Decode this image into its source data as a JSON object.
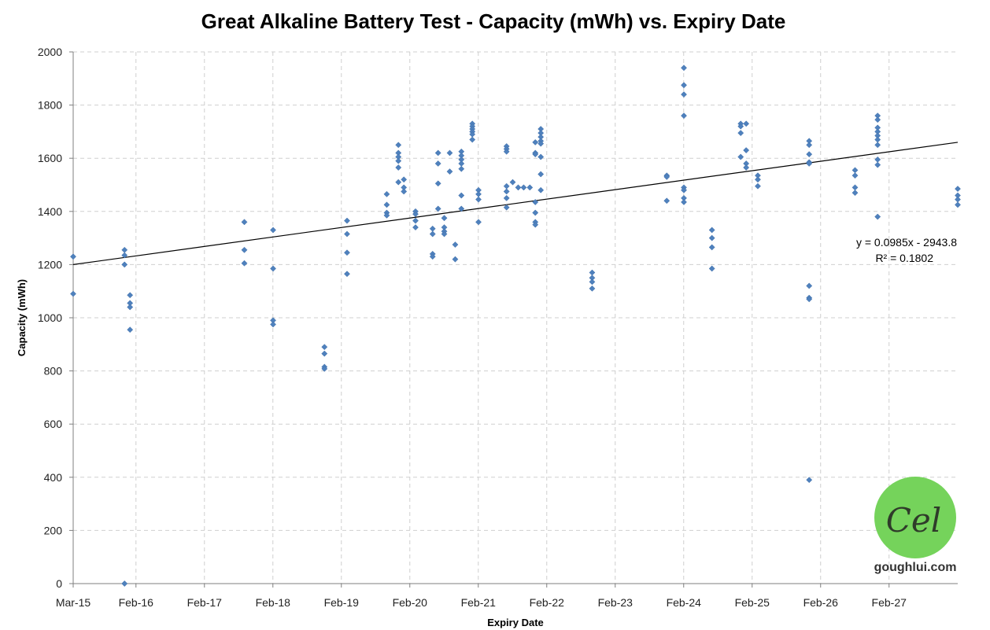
{
  "chart_data": {
    "type": "scatter",
    "title": "Great Alkaline Battery Test - Capacity (mWh) vs. Expiry Date",
    "xlabel": "Expiry Date",
    "ylabel": "Capacity (mWh)",
    "x_unit": "years since Mar-15",
    "xlim": [
      0,
      12.92
    ],
    "ylim": [
      0,
      2000
    ],
    "ytick_step": 200,
    "grid": true,
    "x_tick_labels": [
      {
        "x": 0.0,
        "label": "Mar-15"
      },
      {
        "x": 0.917,
        "label": "Feb-16"
      },
      {
        "x": 1.917,
        "label": "Feb-17"
      },
      {
        "x": 2.917,
        "label": "Feb-18"
      },
      {
        "x": 3.917,
        "label": "Feb-19"
      },
      {
        "x": 4.917,
        "label": "Feb-20"
      },
      {
        "x": 5.917,
        "label": "Feb-21"
      },
      {
        "x": 6.917,
        "label": "Feb-22"
      },
      {
        "x": 7.917,
        "label": "Feb-23"
      },
      {
        "x": 8.917,
        "label": "Feb-24"
      },
      {
        "x": 9.917,
        "label": "Feb-25"
      },
      {
        "x": 10.917,
        "label": "Feb-26"
      },
      {
        "x": 11.917,
        "label": "Feb-27"
      }
    ],
    "points": [
      [
        0.0,
        1230
      ],
      [
        0.0,
        1090
      ],
      [
        0.75,
        1255
      ],
      [
        0.75,
        1235
      ],
      [
        0.75,
        1200
      ],
      [
        0.75,
        0
      ],
      [
        0.83,
        1085
      ],
      [
        0.83,
        1055
      ],
      [
        0.83,
        1040
      ],
      [
        0.83,
        955
      ],
      [
        2.5,
        1360
      ],
      [
        2.5,
        1255
      ],
      [
        2.5,
        1205
      ],
      [
        2.92,
        1330
      ],
      [
        2.92,
        1185
      ],
      [
        2.92,
        990
      ],
      [
        2.92,
        975
      ],
      [
        3.67,
        890
      ],
      [
        3.67,
        865
      ],
      [
        3.67,
        815
      ],
      [
        3.67,
        808
      ],
      [
        4.0,
        1365
      ],
      [
        4.0,
        1315
      ],
      [
        4.0,
        1245
      ],
      [
        4.0,
        1165
      ],
      [
        4.58,
        1465
      ],
      [
        4.58,
        1425
      ],
      [
        4.58,
        1395
      ],
      [
        4.58,
        1385
      ],
      [
        4.75,
        1650
      ],
      [
        4.75,
        1620
      ],
      [
        4.75,
        1605
      ],
      [
        4.75,
        1590
      ],
      [
        4.75,
        1565
      ],
      [
        4.75,
        1510
      ],
      [
        4.83,
        1520
      ],
      [
        4.83,
        1490
      ],
      [
        4.83,
        1475
      ],
      [
        5.0,
        1400
      ],
      [
        5.0,
        1390
      ],
      [
        5.0,
        1365
      ],
      [
        5.0,
        1340
      ],
      [
        5.25,
        1335
      ],
      [
        5.25,
        1315
      ],
      [
        5.25,
        1240
      ],
      [
        5.25,
        1230
      ],
      [
        5.33,
        1620
      ],
      [
        5.33,
        1580
      ],
      [
        5.33,
        1505
      ],
      [
        5.33,
        1410
      ],
      [
        5.42,
        1375
      ],
      [
        5.42,
        1340
      ],
      [
        5.42,
        1325
      ],
      [
        5.42,
        1315
      ],
      [
        5.5,
        1620
      ],
      [
        5.5,
        1550
      ],
      [
        5.58,
        1275
      ],
      [
        5.58,
        1220
      ],
      [
        5.67,
        1625
      ],
      [
        5.67,
        1610
      ],
      [
        5.67,
        1595
      ],
      [
        5.67,
        1580
      ],
      [
        5.67,
        1560
      ],
      [
        5.67,
        1460
      ],
      [
        5.67,
        1410
      ],
      [
        5.83,
        1730
      ],
      [
        5.83,
        1720
      ],
      [
        5.83,
        1710
      ],
      [
        5.83,
        1700
      ],
      [
        5.83,
        1690
      ],
      [
        5.83,
        1670
      ],
      [
        5.92,
        1480
      ],
      [
        5.92,
        1465
      ],
      [
        5.92,
        1445
      ],
      [
        5.92,
        1360
      ],
      [
        6.33,
        1645
      ],
      [
        6.33,
        1635
      ],
      [
        6.33,
        1625
      ],
      [
        6.33,
        1495
      ],
      [
        6.33,
        1475
      ],
      [
        6.33,
        1450
      ],
      [
        6.33,
        1415
      ],
      [
        6.42,
        1510
      ],
      [
        6.5,
        1490
      ],
      [
        6.58,
        1490
      ],
      [
        6.67,
        1490
      ],
      [
        6.75,
        1660
      ],
      [
        6.75,
        1620
      ],
      [
        6.75,
        1615
      ],
      [
        6.75,
        1435
      ],
      [
        6.75,
        1395
      ],
      [
        6.75,
        1360
      ],
      [
        6.75,
        1350
      ],
      [
        6.83,
        1710
      ],
      [
        6.83,
        1695
      ],
      [
        6.83,
        1680
      ],
      [
        6.83,
        1665
      ],
      [
        6.83,
        1655
      ],
      [
        6.83,
        1605
      ],
      [
        6.83,
        1540
      ],
      [
        6.83,
        1480
      ],
      [
        7.58,
        1170
      ],
      [
        7.58,
        1150
      ],
      [
        7.58,
        1135
      ],
      [
        7.58,
        1110
      ],
      [
        8.67,
        1535
      ],
      [
        8.67,
        1530
      ],
      [
        8.67,
        1440
      ],
      [
        8.92,
        1940
      ],
      [
        8.92,
        1875
      ],
      [
        8.92,
        1840
      ],
      [
        8.92,
        1760
      ],
      [
        8.92,
        1490
      ],
      [
        8.92,
        1480
      ],
      [
        8.92,
        1450
      ],
      [
        8.92,
        1435
      ],
      [
        9.33,
        1330
      ],
      [
        9.33,
        1300
      ],
      [
        9.33,
        1265
      ],
      [
        9.33,
        1185
      ],
      [
        9.75,
        1730
      ],
      [
        9.75,
        1720
      ],
      [
        9.75,
        1695
      ],
      [
        9.75,
        1605
      ],
      [
        9.83,
        1730
      ],
      [
        9.83,
        1630
      ],
      [
        9.83,
        1580
      ],
      [
        9.83,
        1565
      ],
      [
        10.0,
        1535
      ],
      [
        10.0,
        1520
      ],
      [
        10.0,
        1495
      ],
      [
        10.75,
        1665
      ],
      [
        10.75,
        1650
      ],
      [
        10.75,
        1615
      ],
      [
        10.75,
        1585
      ],
      [
        10.75,
        1580
      ],
      [
        10.75,
        1120
      ],
      [
        10.75,
        1075
      ],
      [
        10.75,
        1070
      ],
      [
        10.75,
        390
      ],
      [
        11.42,
        1555
      ],
      [
        11.42,
        1535
      ],
      [
        11.42,
        1490
      ],
      [
        11.42,
        1470
      ],
      [
        11.75,
        1760
      ],
      [
        11.75,
        1745
      ],
      [
        11.75,
        1715
      ],
      [
        11.75,
        1700
      ],
      [
        11.75,
        1685
      ],
      [
        11.75,
        1670
      ],
      [
        11.75,
        1650
      ],
      [
        11.75,
        1595
      ],
      [
        11.75,
        1575
      ],
      [
        11.75,
        1380
      ],
      [
        12.92,
        1485
      ],
      [
        12.92,
        1460
      ],
      [
        12.92,
        1445
      ],
      [
        12.92,
        1425
      ]
    ],
    "trendline": {
      "start": [
        0,
        1200
      ],
      "end": [
        12.92,
        1660
      ]
    },
    "trendline_equation": "y = 0.0985x - 2943.8",
    "r_squared": "R² = 0.1802",
    "marker_color": "#4f81bd"
  },
  "watermark": {
    "logo_glyph": "Cel",
    "site": "goughlui.com",
    "color": "#75d35b"
  }
}
